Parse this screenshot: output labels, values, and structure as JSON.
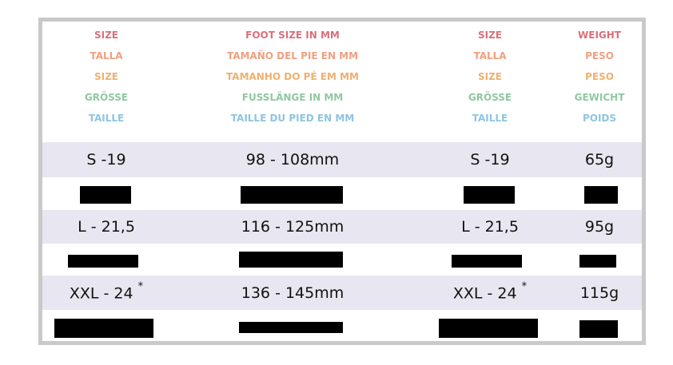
{
  "table": {
    "header": [
      [
        "SIZE",
        "FOOT SIZE IN MM",
        "SIZE",
        "WEIGHT"
      ],
      [
        "TALLA",
        "TAMAÑO DEL PIE EN MM",
        "TALLA",
        "PESO"
      ],
      [
        "SIZE",
        "TAMANHO DO PÉ EM MM",
        "SIZE",
        "PESO"
      ],
      [
        "GRÖSSE",
        "FUSSLÄNGE IN MM",
        "GRÖSSE",
        "GEWICHT"
      ],
      [
        "TAILLE",
        "TAILLE DU PIED EN MM",
        "TAILLE",
        "POIDS"
      ]
    ],
    "rows": [
      [
        "S -19",
        "98 - 108mm",
        "S -19",
        "65g"
      ],
      [
        "L - 21,5",
        "116 - 125mm",
        "L - 21,5",
        "95g"
      ],
      [
        {
          "text": "XXL - 24",
          "mark": "*"
        },
        "136 - 145mm",
        {
          "text": "XXL - 24",
          "mark": "*"
        },
        "115g"
      ]
    ]
  }
}
